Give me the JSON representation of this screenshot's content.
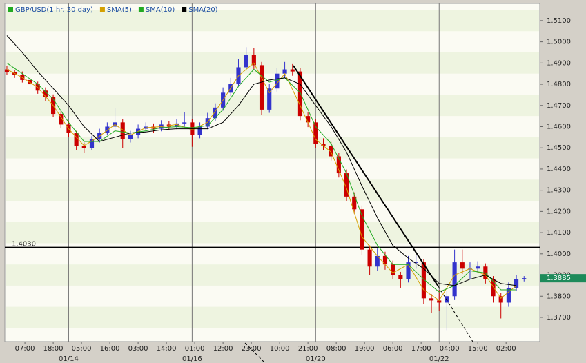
{
  "chart_data": {
    "type": "candlestick",
    "series_name": "GBP/USD(1 hr. 30 day)",
    "series_color": "#22aa22",
    "up_color": "#3333cc",
    "down_color": "#cc0000",
    "x": [
      0,
      3,
      6,
      9,
      12,
      15,
      18,
      21,
      24,
      27,
      30,
      33,
      36,
      39,
      42,
      45,
      48,
      51,
      54,
      57,
      60,
      63,
      66,
      69,
      72,
      75,
      78,
      81,
      84,
      87,
      90,
      93,
      96,
      99,
      102,
      105,
      108,
      111,
      114,
      117,
      120,
      123,
      126,
      129,
      132,
      135,
      138,
      141,
      144,
      147,
      150,
      153,
      156,
      159,
      162,
      165,
      168,
      171,
      174,
      177,
      180,
      183,
      186,
      189,
      192,
      195,
      198,
      201
    ],
    "open": [
      1.487,
      1.4856,
      1.4845,
      1.482,
      1.48,
      1.477,
      1.474,
      1.466,
      1.461,
      1.457,
      1.451,
      1.45,
      1.454,
      1.457,
      1.46,
      1.462,
      1.454,
      1.456,
      1.459,
      1.46,
      1.459,
      1.461,
      1.46,
      1.4615,
      1.462,
      1.456,
      1.46,
      1.464,
      1.469,
      1.476,
      1.48,
      1.488,
      1.494,
      1.489,
      1.468,
      1.478,
      1.485,
      1.487,
      1.486,
      1.465,
      1.462,
      1.452,
      1.451,
      1.446,
      1.438,
      1.427,
      1.421,
      1.402,
      1.394,
      1.399,
      1.395,
      1.39,
      1.388,
      1.396,
      1.396,
      1.379,
      1.378,
      1.377,
      1.38,
      1.396,
      1.393,
      1.393,
      1.394,
      1.388,
      1.38,
      1.377,
      1.384,
      1.388
    ],
    "high": [
      1.4885,
      1.4868,
      1.486,
      1.4835,
      1.4812,
      1.4785,
      1.4752,
      1.4672,
      1.4625,
      1.458,
      1.4525,
      1.4555,
      1.459,
      1.462,
      1.469,
      1.4635,
      1.458,
      1.461,
      1.462,
      1.4615,
      1.463,
      1.4625,
      1.4635,
      1.467,
      1.4635,
      1.462,
      1.4665,
      1.471,
      1.4785,
      1.483,
      1.492,
      1.4975,
      1.497,
      1.4905,
      1.48,
      1.4875,
      1.4905,
      1.4895,
      1.4875,
      1.4668,
      1.4635,
      1.4545,
      1.4528,
      1.4475,
      1.4398,
      1.429,
      1.4228,
      1.404,
      1.4025,
      1.401,
      1.3968,
      1.3915,
      1.399,
      1.3995,
      1.3975,
      1.381,
      1.383,
      1.3825,
      1.402,
      1.402,
      1.396,
      1.3965,
      1.3955,
      1.3895,
      1.3815,
      1.3865,
      1.39,
      1.3895
    ],
    "low": [
      1.4845,
      1.483,
      1.4808,
      1.4785,
      1.4755,
      1.472,
      1.4645,
      1.4595,
      1.455,
      1.449,
      1.4475,
      1.4488,
      1.4525,
      1.456,
      1.4585,
      1.45,
      1.4525,
      1.4545,
      1.4575,
      1.457,
      1.4578,
      1.4585,
      1.4588,
      1.46,
      1.4505,
      1.4545,
      1.4588,
      1.4625,
      1.4675,
      1.4745,
      1.479,
      1.4865,
      1.487,
      1.4655,
      1.4665,
      1.4765,
      1.483,
      1.484,
      1.463,
      1.4598,
      1.45,
      1.4488,
      1.444,
      1.436,
      1.425,
      1.419,
      1.3995,
      1.39,
      1.392,
      1.3925,
      1.388,
      1.384,
      1.3865,
      1.393,
      1.3765,
      1.372,
      1.373,
      1.364,
      1.3785,
      1.3905,
      1.388,
      1.391,
      1.386,
      1.377,
      1.3695,
      1.375,
      1.3825,
      1.387
    ],
    "close": [
      1.4856,
      1.4845,
      1.482,
      1.48,
      1.477,
      1.474,
      1.466,
      1.461,
      1.457,
      1.451,
      1.45,
      1.454,
      1.457,
      1.46,
      1.462,
      1.454,
      1.456,
      1.459,
      1.46,
      1.459,
      1.461,
      1.46,
      1.4615,
      1.462,
      1.456,
      1.46,
      1.464,
      1.469,
      1.476,
      1.48,
      1.488,
      1.494,
      1.489,
      1.468,
      1.478,
      1.485,
      1.487,
      1.486,
      1.465,
      1.462,
      1.452,
      1.451,
      1.446,
      1.438,
      1.427,
      1.421,
      1.402,
      1.394,
      1.399,
      1.395,
      1.39,
      1.388,
      1.396,
      1.396,
      1.379,
      1.378,
      1.377,
      1.38,
      1.396,
      1.393,
      1.393,
      1.394,
      1.388,
      1.38,
      1.377,
      1.384,
      1.388,
      1.3885
    ],
    "sma_x": [
      0,
      6,
      12,
      18,
      24,
      30,
      36,
      42,
      48,
      54,
      60,
      66,
      72,
      78,
      84,
      90,
      96,
      102,
      108,
      114,
      120,
      126,
      132,
      138,
      144,
      150,
      156,
      162,
      168,
      174,
      180,
      186,
      192,
      198
    ],
    "overlays": [
      {
        "name": "SMA(5)",
        "color": "#d4a000",
        "values": [
          1.487,
          1.4832,
          1.4785,
          1.47,
          1.459,
          1.451,
          1.4555,
          1.461,
          1.456,
          1.4595,
          1.46,
          1.461,
          1.4585,
          1.462,
          1.4725,
          1.484,
          1.49,
          1.476,
          1.485,
          1.47,
          1.454,
          1.448,
          1.431,
          1.408,
          1.399,
          1.391,
          1.395,
          1.383,
          1.378,
          1.39,
          1.393,
          1.39,
          1.379,
          1.385
        ]
      },
      {
        "name": "SMA(10)",
        "color": "#22aa22",
        "values": [
          1.49,
          1.485,
          1.48,
          1.473,
          1.462,
          1.453,
          1.453,
          1.458,
          1.457,
          1.458,
          1.4595,
          1.46,
          1.4595,
          1.4605,
          1.468,
          1.479,
          1.487,
          1.481,
          1.483,
          1.476,
          1.46,
          1.452,
          1.438,
          1.418,
          1.404,
          1.395,
          1.395,
          1.388,
          1.382,
          1.385,
          1.392,
          1.391,
          1.383,
          1.383
        ]
      },
      {
        "name": "SMA(20)",
        "color": "#000000",
        "values": [
          1.503,
          1.495,
          1.486,
          1.478,
          1.47,
          1.46,
          1.453,
          1.455,
          1.457,
          1.4575,
          1.4585,
          1.459,
          1.459,
          1.459,
          1.462,
          1.47,
          1.48,
          1.482,
          1.483,
          1.48,
          1.47,
          1.46,
          1.448,
          1.432,
          1.417,
          1.404,
          1.398,
          1.393,
          1.386,
          1.385,
          1.388,
          1.39,
          1.386,
          1.385
        ]
      }
    ],
    "xlim": [
      -0.8,
      207.1
    ],
    "ylim": [
      1.3586,
      1.5181
    ],
    "yticks": [
      {
        "value": 1.37,
        "label": "1.3700"
      },
      {
        "value": 1.38,
        "label": "1.3800"
      },
      {
        "value": 1.39,
        "label": "1.3900"
      },
      {
        "value": 1.4,
        "label": "1.4000"
      },
      {
        "value": 1.41,
        "label": "1.4100"
      },
      {
        "value": 1.42,
        "label": "1.4200"
      },
      {
        "value": 1.43,
        "label": "1.4300"
      },
      {
        "value": 1.44,
        "label": "1.4400"
      },
      {
        "value": 1.45,
        "label": "1.4500"
      },
      {
        "value": 1.46,
        "label": "1.4600"
      },
      {
        "value": 1.47,
        "label": "1.4700"
      },
      {
        "value": 1.48,
        "label": "1.4800"
      },
      {
        "value": 1.49,
        "label": "1.4900"
      },
      {
        "value": 1.5,
        "label": "1.5000"
      },
      {
        "value": 1.51,
        "label": "1.5100"
      }
    ],
    "xticks": [
      {
        "value": 7,
        "label": "07:00"
      },
      {
        "value": 18,
        "label": "18:00"
      },
      {
        "value": 29,
        "label": "05:00"
      },
      {
        "value": 40,
        "label": "16:00"
      },
      {
        "value": 51,
        "label": "03:00"
      },
      {
        "value": 62,
        "label": "14:00"
      },
      {
        "value": 73,
        "label": "01:00"
      },
      {
        "value": 84,
        "label": "12:00"
      },
      {
        "value": 95,
        "label": "23:00"
      },
      {
        "value": 106,
        "label": "10:00"
      },
      {
        "value": 117,
        "label": "21:00"
      },
      {
        "value": 128,
        "label": "08:00"
      },
      {
        "value": 139,
        "label": "19:00"
      },
      {
        "value": 150,
        "label": "06:00"
      },
      {
        "value": 161,
        "label": "17:00"
      },
      {
        "value": 172,
        "label": "04:00"
      },
      {
        "value": 183,
        "label": "15:00"
      },
      {
        "value": 194,
        "label": "02:00"
      }
    ],
    "date_ticks": [
      {
        "value": 24,
        "label": "01/14"
      },
      {
        "value": 72,
        "label": "01/16"
      },
      {
        "value": 120,
        "label": "01/20"
      },
      {
        "value": 168,
        "label": "01/22"
      }
    ],
    "hline": {
      "value": 1.403,
      "label": "1.4030"
    },
    "last_price": {
      "value": 1.3885,
      "label": "1.3885"
    },
    "last_price_color": "#1d8a5a"
  }
}
